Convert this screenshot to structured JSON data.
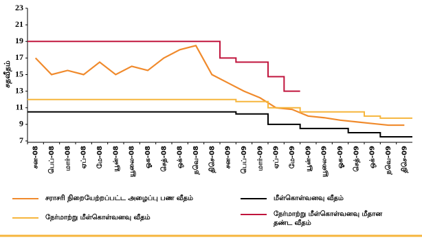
{
  "chart_data": {
    "type": "line",
    "y_label": "சதவீதம்",
    "categories": [
      "சன-08",
      "பெப்-08",
      "மார்-08",
      "ஏப்-08",
      "மே-08",
      "யூன்-08",
      "யூலை-08",
      "ஓக-08",
      "செத்-08",
      "ஒக்-08",
      "நவெ-08",
      "திசெ-08",
      "சன-09",
      "பெப்-09",
      "மார்-09",
      "ஏப்-09",
      "மே-09",
      "யூன்-09",
      "யூலை-09",
      "ஓக-09",
      "செத்-09",
      "ஒக்-09",
      "நவெ-09",
      "திசெ-09"
    ],
    "ylim": [
      7,
      23
    ],
    "yticks": [
      7,
      9,
      11,
      13,
      15,
      17,
      19,
      21,
      23
    ],
    "series": [
      {
        "name": "சராசரி நிறையேற்றப்பட்ட அழைப்பு பண வீதம்",
        "color": "#f08a2c",
        "step": false,
        "values": [
          17,
          15,
          15.5,
          15,
          16.5,
          15,
          16,
          15.5,
          17,
          18,
          18.5,
          15,
          14,
          13,
          12.2,
          11,
          10.8,
          10,
          9.8,
          9.5,
          9.3,
          9.1,
          8.9,
          8.9
        ]
      },
      {
        "name": "மீள்கொள்வனவு வீதம்",
        "color": "#000000",
        "step": true,
        "values": [
          10.5,
          10.5,
          10.5,
          10.5,
          10.5,
          10.5,
          10.5,
          10.5,
          10.5,
          10.5,
          10.5,
          10.5,
          10.5,
          10.25,
          10.25,
          9,
          9,
          8.5,
          8.5,
          8.5,
          8,
          8,
          7.5,
          7.5
        ]
      },
      {
        "name": "நேர்மாற்று மீள்கொள்வனவு வீதம்",
        "color": "#f6b53c",
        "step": true,
        "values": [
          12,
          12,
          12,
          12,
          12,
          12,
          12,
          12,
          12,
          12,
          12,
          12,
          12,
          11.75,
          11.75,
          11,
          11,
          10.5,
          10.5,
          10.5,
          10.5,
          10,
          9.75,
          9.75
        ]
      },
      {
        "name": "நேர்மாற்று மீள்கொள்வனவு மீதான தண்ட வீதம்",
        "color": "#c0143c",
        "step": true,
        "values": [
          19,
          19,
          19,
          19,
          19,
          19,
          19,
          19,
          19,
          19,
          19,
          19,
          17,
          16.5,
          16.5,
          14.75,
          13,
          null,
          null,
          null,
          null,
          null,
          null,
          null
        ]
      }
    ]
  }
}
